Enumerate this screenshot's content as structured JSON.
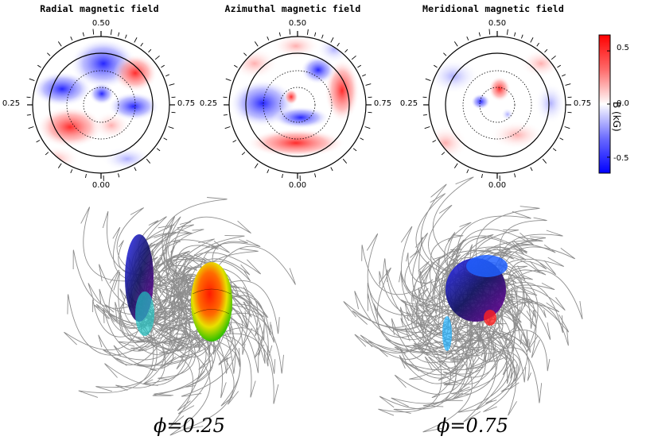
{
  "maps": [
    {
      "title": "Radial magnetic field",
      "phase_top": "0.50",
      "phase_left": "0.25",
      "phase_right": "0.75",
      "phase_bottom": "0.00"
    },
    {
      "title": "Azimuthal magnetic field",
      "phase_top": "0.50",
      "phase_left": "0.25",
      "phase_right": "0.75",
      "phase_bottom": "0.00"
    },
    {
      "title": "Meridional magnetic field",
      "phase_top": "0.50",
      "phase_left": "0.25",
      "phase_right": "0.75",
      "phase_bottom": "0.00"
    }
  ],
  "colorbar": {
    "title": "B (kG)",
    "ticks": [
      "0.5",
      "0.0",
      "-0.5"
    ],
    "tick_values": [
      0.5,
      0.0,
      -0.5
    ],
    "range": [
      -0.65,
      0.65
    ],
    "colors": {
      "max": "#ff0000",
      "mid": "#ffffff",
      "min": "#0000ff"
    }
  },
  "models": [
    {
      "phase_label": "ϕ=0.25"
    },
    {
      "phase_label": "ϕ=0.75"
    }
  ]
}
